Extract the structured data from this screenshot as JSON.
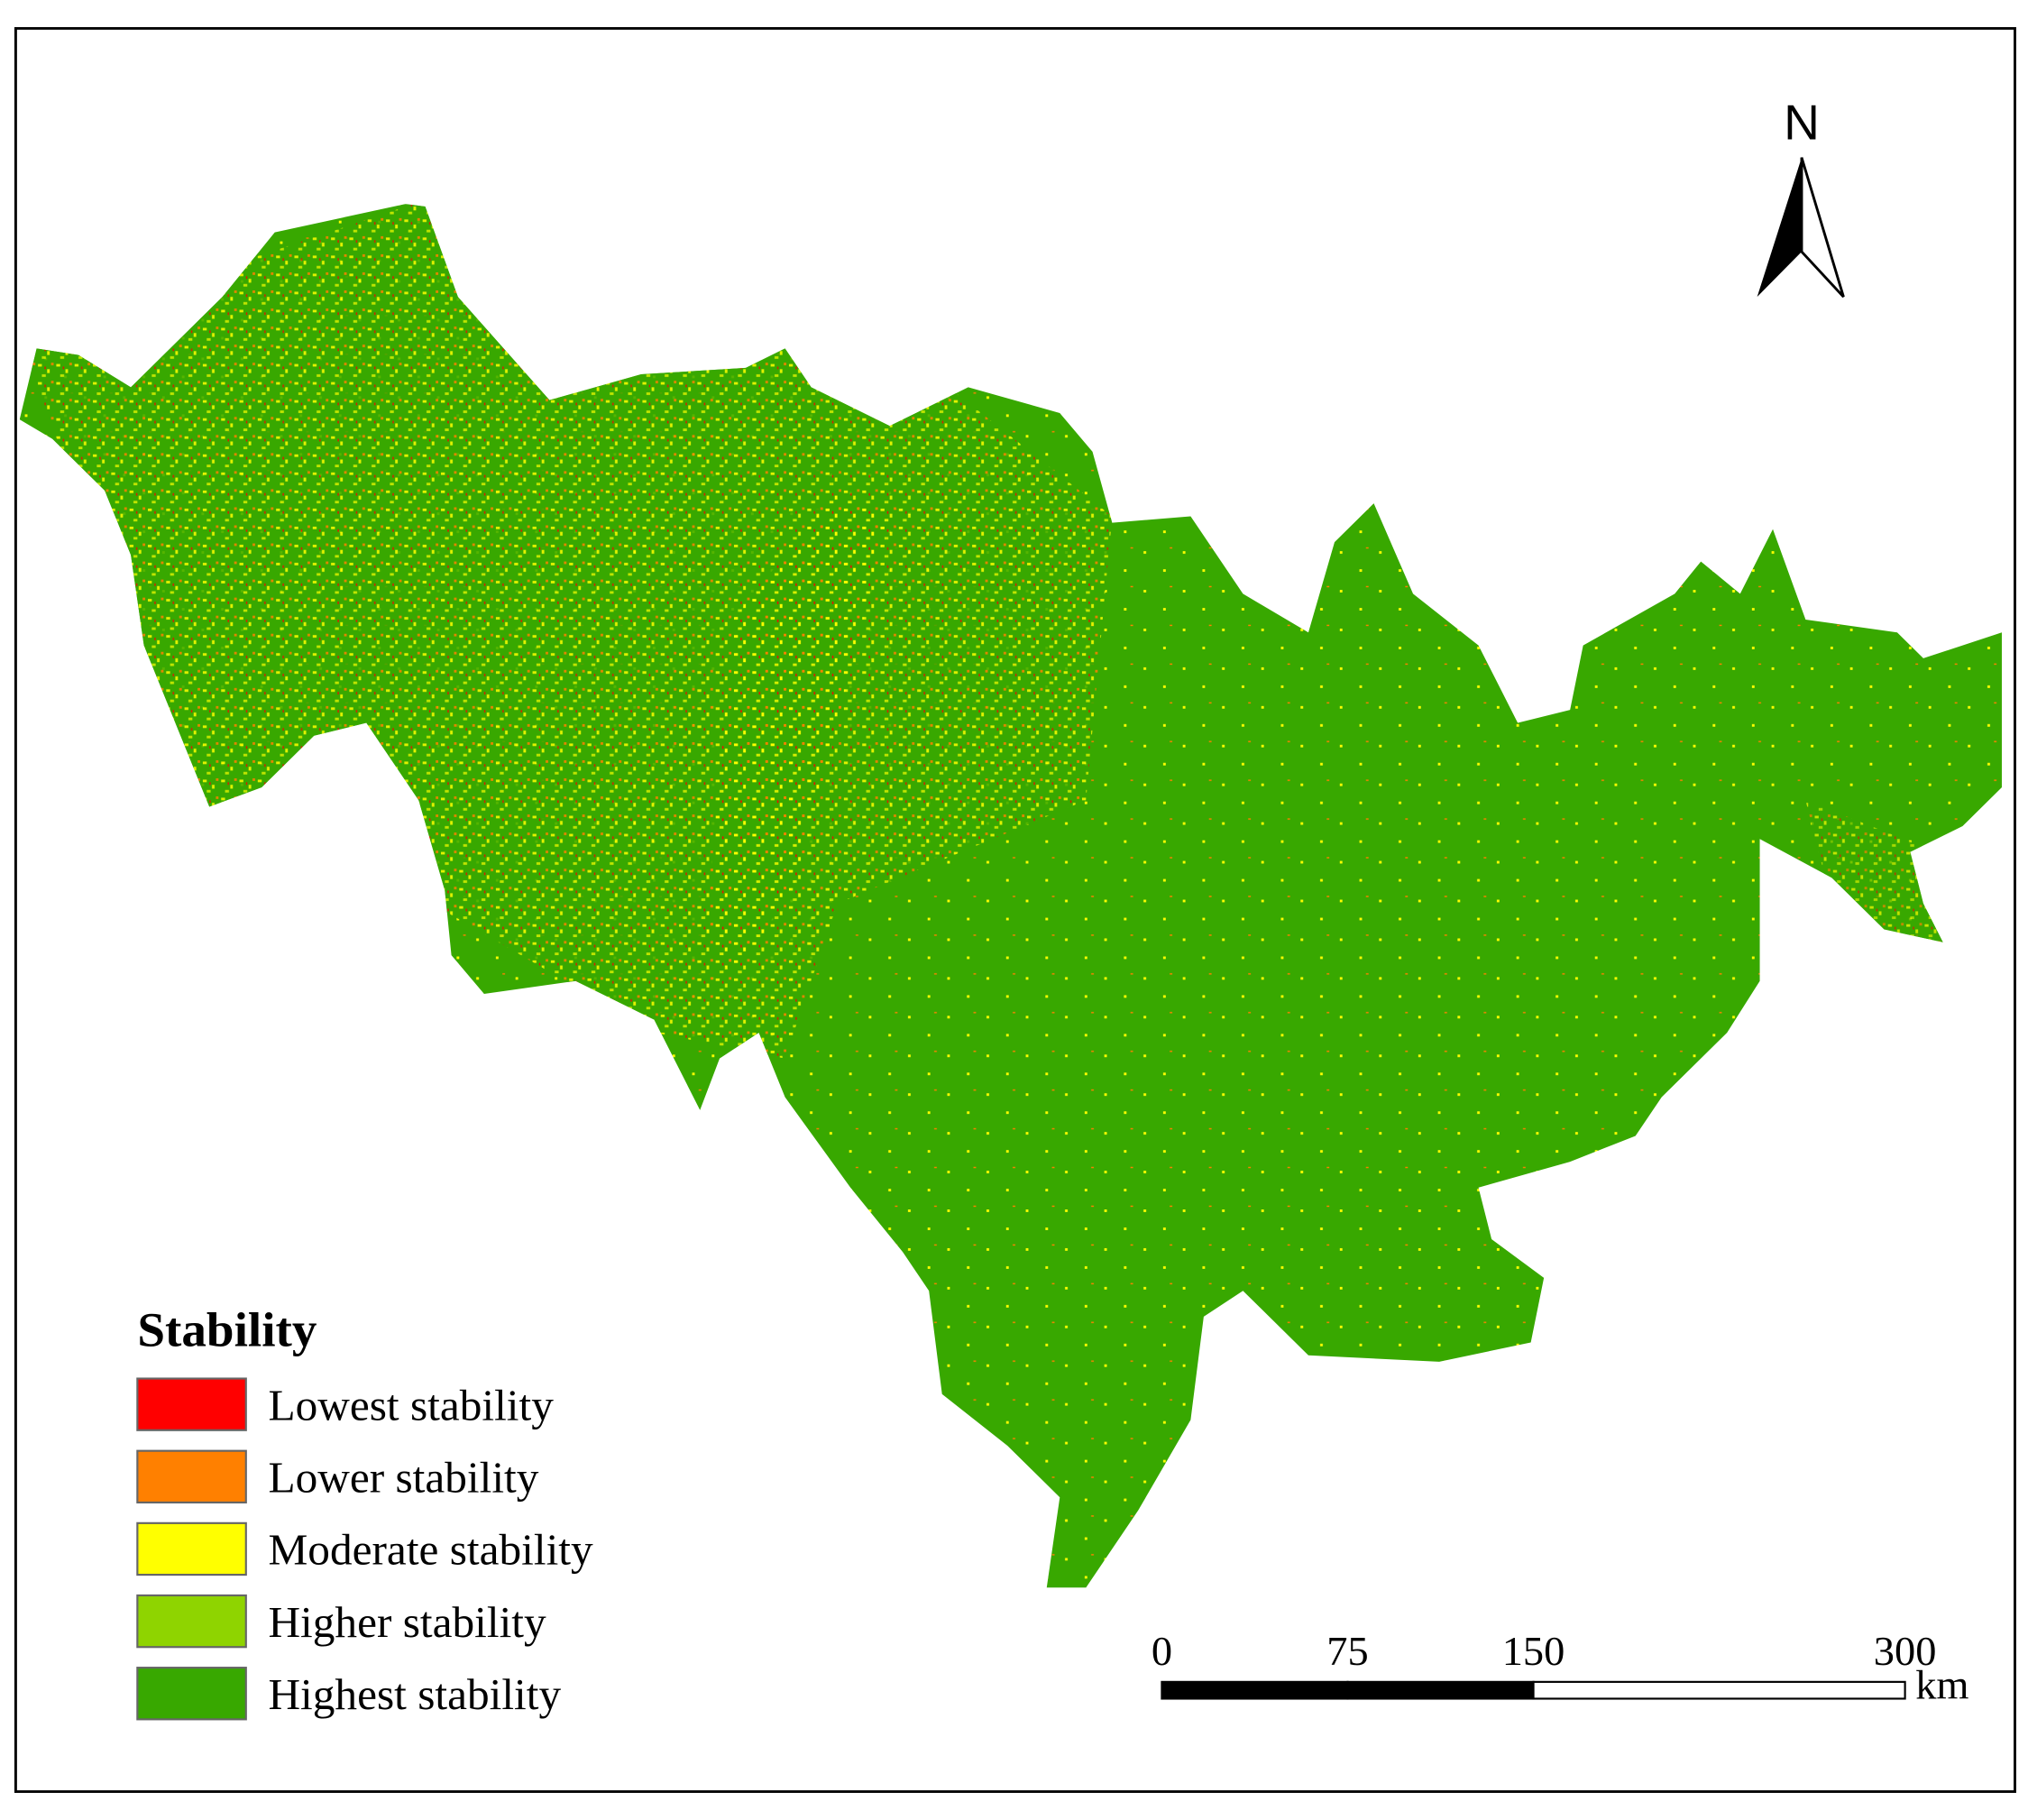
{
  "legend": {
    "title": "Stability",
    "items": [
      {
        "name": "Lowest stability",
        "color": "#ff0000"
      },
      {
        "name": "Lower stability",
        "color": "#ff8000"
      },
      {
        "name": "Moderate stability",
        "color": "#ffff00"
      },
      {
        "name": "Higher stability",
        "color": "#8fd400"
      },
      {
        "name": "Highest stability",
        "color": "#38a800"
      }
    ]
  },
  "north_arrow": {
    "label": "N"
  },
  "scale_bar": {
    "ticks": [
      0,
      75,
      150,
      300
    ],
    "unit": "km"
  }
}
